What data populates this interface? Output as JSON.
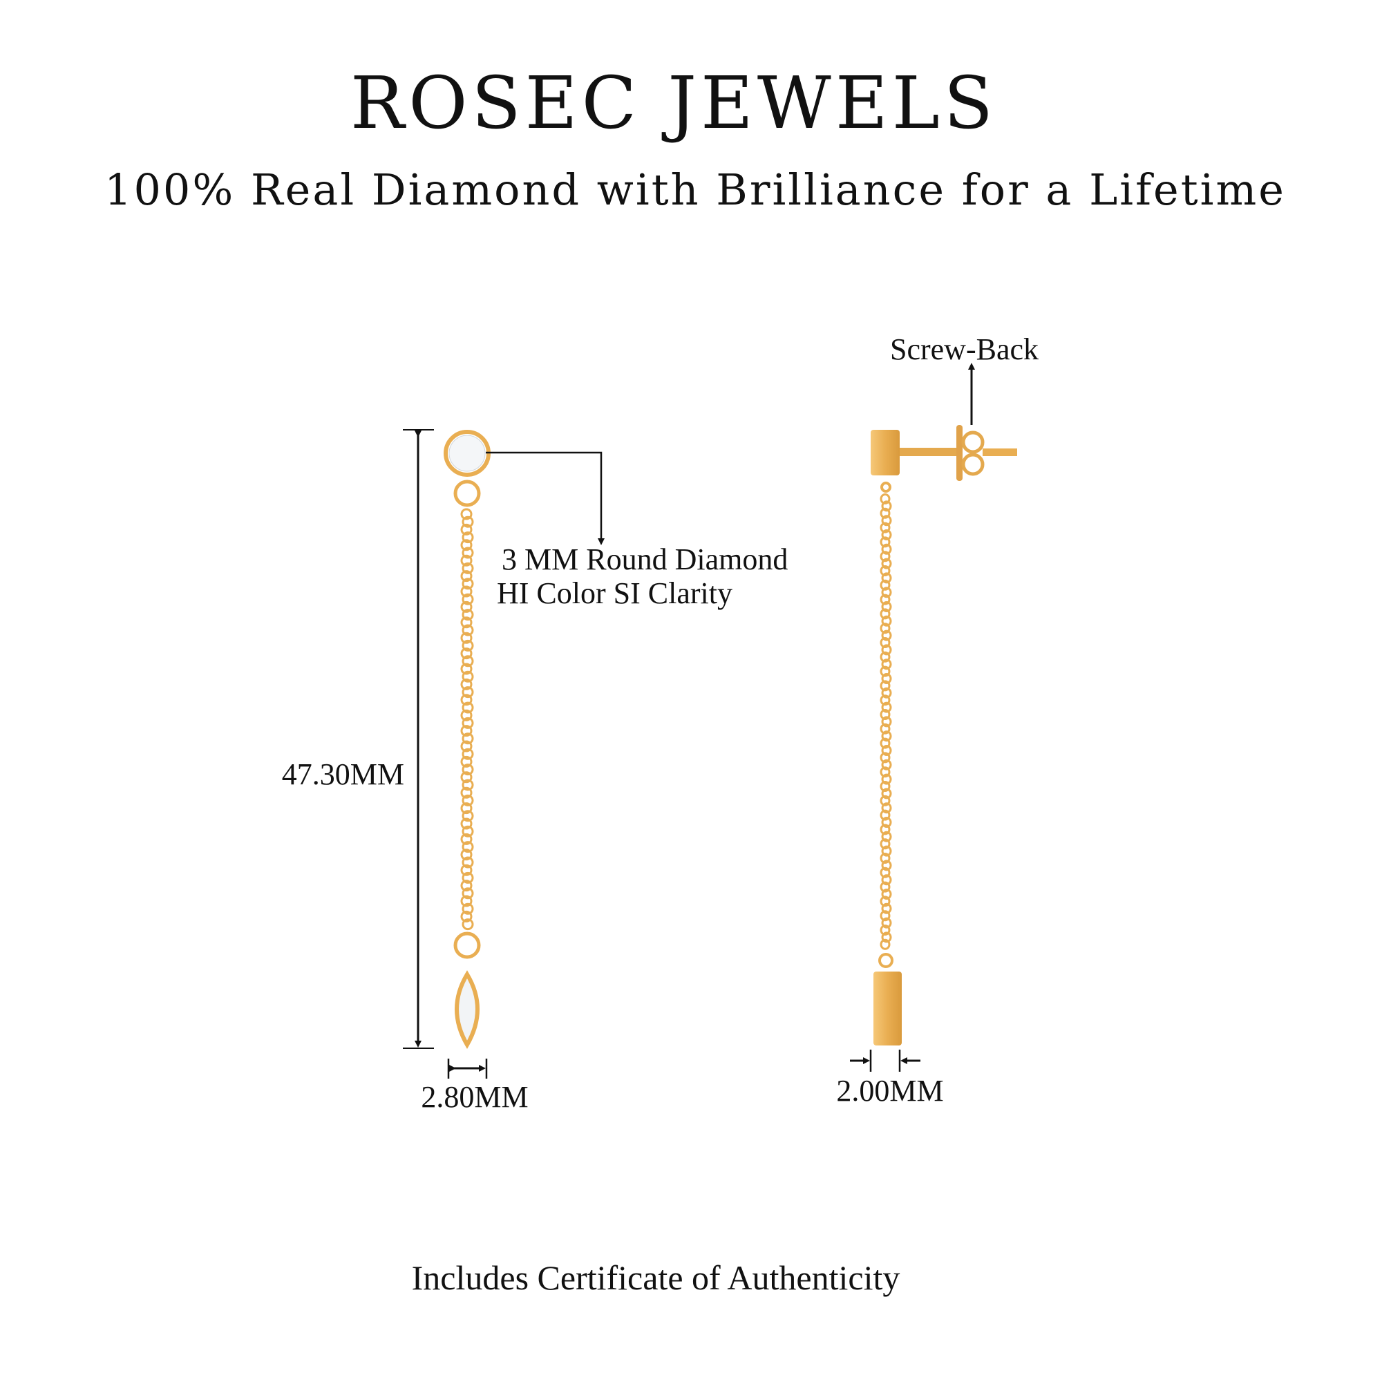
{
  "header": {
    "title": "ROSEC JEWELS",
    "subtitle": "100% Real Diamond with Brilliance for a Lifetime"
  },
  "annotations": {
    "length": "47.30MM",
    "diamond_line1": "3 MM Round Diamond",
    "diamond_line2": "HI Color SI Clarity",
    "front_width": "2.80MM",
    "side_width": "2.00MM",
    "screw_back": "Screw-Back"
  },
  "footer": {
    "certificate": "Includes Certificate of Authenticity"
  },
  "colors": {
    "gold": "#E9AE52",
    "gold_dark": "#C98A2E",
    "ink": "#111111"
  }
}
